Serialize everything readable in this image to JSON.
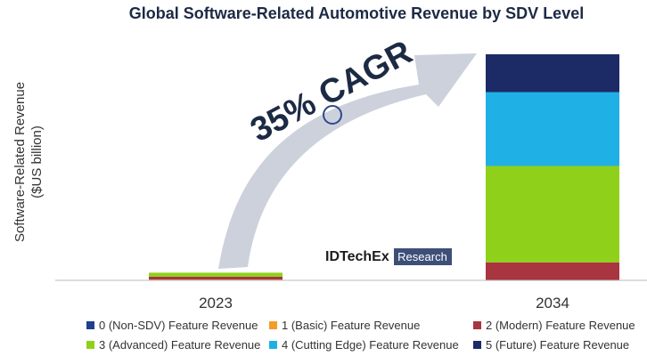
{
  "chart_data": {
    "type": "bar",
    "stacked": true,
    "title": "Global Software-Related Automotive Revenue by SDV Level",
    "ylabel": [
      "Software-Related Revenue",
      "($US billion)"
    ],
    "xlabel": "",
    "categories": [
      "2023",
      "2034"
    ],
    "ylim": [
      0,
      250
    ],
    "series": [
      {
        "name": "0 (Non-SDV) Feature Revenue",
        "color": "#1f3f8f",
        "values": [
          0.3,
          0
        ]
      },
      {
        "name": "1 (Basic) Feature Revenue",
        "color": "#f39c2a",
        "values": [
          0.5,
          0
        ]
      },
      {
        "name": "2 (Modern) Feature Revenue",
        "color": "#a8353f",
        "values": [
          3.2,
          20
        ]
      },
      {
        "name": "3 (Advanced) Feature Revenue",
        "color": "#8fd11a",
        "values": [
          4.5,
          107
        ]
      },
      {
        "name": "4 (Cutting Edge) Feature Revenue",
        "color": "#1fb0e6",
        "values": [
          0,
          82
        ]
      },
      {
        "name": "5 (Future) Feature Revenue",
        "color": "#1c2a66",
        "values": [
          0,
          42
        ]
      }
    ],
    "legend_position": "bottom",
    "annotation": "35% CAGR",
    "grid": false
  },
  "logo": {
    "main": "IDTechEx",
    "sub": "Research"
  }
}
